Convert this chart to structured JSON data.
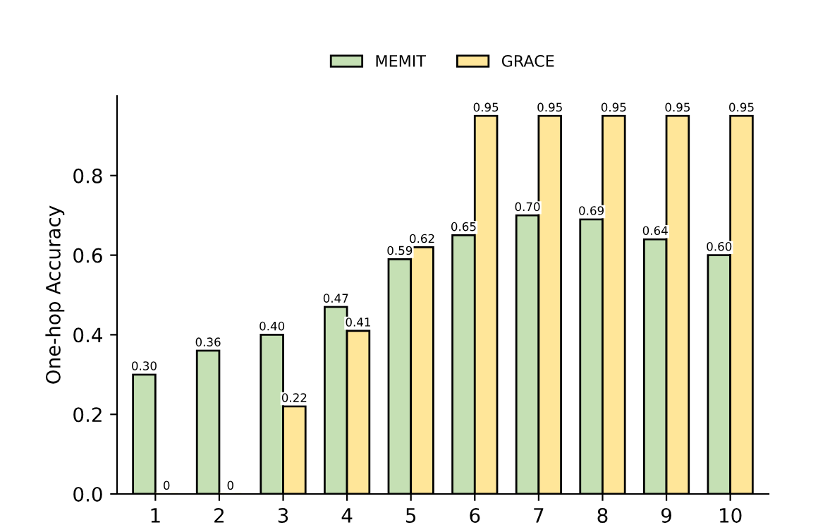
{
  "chart_data": {
    "type": "bar",
    "ylabel": "One-hop Accuracy",
    "categories": [
      "1",
      "2",
      "3",
      "4",
      "5",
      "6",
      "7",
      "8",
      "9",
      "10"
    ],
    "series": [
      {
        "name": "MEMIT",
        "color": "#c5e0b4",
        "values": [
          0.3,
          0.36,
          0.4,
          0.47,
          0.59,
          0.65,
          0.7,
          0.69,
          0.64,
          0.6
        ],
        "value_labels": [
          "0.30",
          "0.36",
          "0.40",
          "0.47",
          "0.59",
          "0.65",
          "0.70",
          "0.69",
          "0.64",
          "0.60"
        ]
      },
      {
        "name": "GRACE",
        "color": "#ffe699",
        "values": [
          0,
          0,
          0.22,
          0.41,
          0.62,
          0.95,
          0.95,
          0.95,
          0.95,
          0.95
        ],
        "value_labels": [
          "0",
          "0",
          "0.22",
          "0.41",
          "0.62",
          "0.95",
          "0.95",
          "0.95",
          "0.95",
          "0.95"
        ]
      }
    ],
    "ylim": [
      0,
      1.0
    ],
    "yticks": [
      {
        "value": 0,
        "label": "0.0"
      },
      {
        "value": 0.2,
        "label": "0.2"
      },
      {
        "value": 0.4,
        "label": "0.4"
      },
      {
        "value": 0.6,
        "label": "0.6"
      },
      {
        "value": 0.8,
        "label": "0.8"
      }
    ],
    "grid": false,
    "legend": "top"
  }
}
